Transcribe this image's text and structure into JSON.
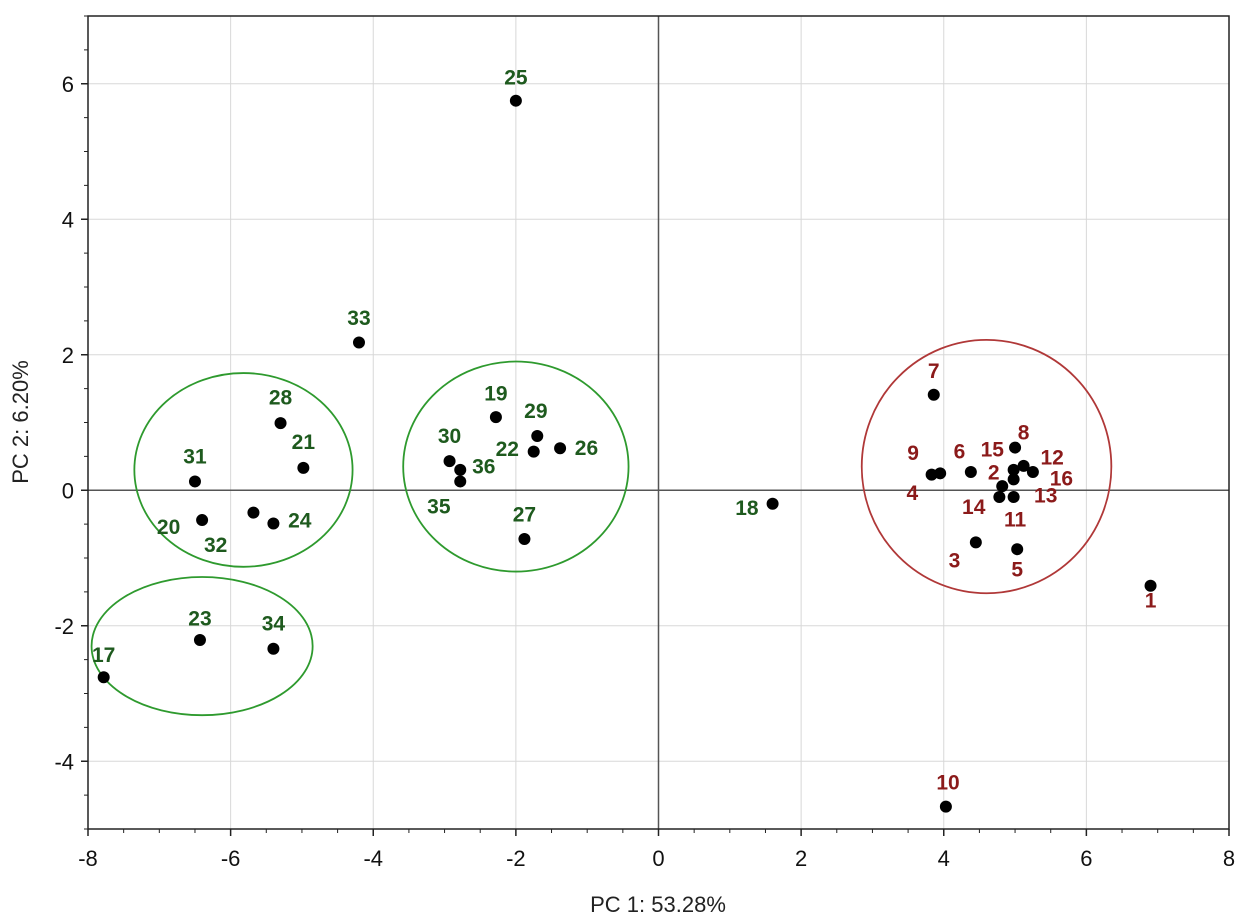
{
  "chart_data": {
    "type": "scatter",
    "title": "",
    "xlabel": "PC 1: 53.28%",
    "ylabel": "PC 2:  6.20%",
    "xlim": [
      -8,
      8
    ],
    "ylim": [
      -5,
      7
    ],
    "xticks": [
      -8,
      -6,
      -4,
      -2,
      0,
      2,
      4,
      6,
      8
    ],
    "yticks": [
      -4,
      -2,
      0,
      2,
      4,
      6
    ],
    "grid": true,
    "colors": {
      "green_group": "#1e5a1e",
      "red_group": "#8b1a1a",
      "green_ellipse": "#2e9a2e",
      "red_ellipse": "#b03838",
      "points": "#000000",
      "grid": "#d8d8d8",
      "zero_lines": "#555555"
    },
    "series": [
      {
        "name": "green",
        "points": [
          {
            "label": "17",
            "x": -7.78,
            "y": -2.76
          },
          {
            "label": "18",
            "x": 1.6,
            "y": -0.2
          },
          {
            "label": "19",
            "x": -2.28,
            "y": 1.08
          },
          {
            "label": "20",
            "x": -6.4,
            "y": -0.44
          },
          {
            "label": "21",
            "x": -4.98,
            "y": 0.33
          },
          {
            "label": "22",
            "x": -1.75,
            "y": 0.57
          },
          {
            "label": "23",
            "x": -6.43,
            "y": -2.21
          },
          {
            "label": "24",
            "x": -5.4,
            "y": -0.49
          },
          {
            "label": "25",
            "x": -2.0,
            "y": 5.75
          },
          {
            "label": "26",
            "x": -1.38,
            "y": 0.62
          },
          {
            "label": "27",
            "x": -1.88,
            "y": -0.72
          },
          {
            "label": "28",
            "x": -5.3,
            "y": 0.99
          },
          {
            "label": "29",
            "x": -1.7,
            "y": 0.8
          },
          {
            "label": "30",
            "x": -2.93,
            "y": 0.43
          },
          {
            "label": "31",
            "x": -6.5,
            "y": 0.13
          },
          {
            "label": "32",
            "x": -5.68,
            "y": -0.33
          },
          {
            "label": "33",
            "x": -4.2,
            "y": 2.18
          },
          {
            "label": "34",
            "x": -5.4,
            "y": -2.34
          },
          {
            "label": "35",
            "x": -2.78,
            "y": 0.13
          },
          {
            "label": "36",
            "x": -2.78,
            "y": 0.3
          }
        ]
      },
      {
        "name": "red",
        "points": [
          {
            "label": "1",
            "x": 6.9,
            "y": -1.41
          },
          {
            "label": "2",
            "x": 4.82,
            "y": 0.06
          },
          {
            "label": "3",
            "x": 4.45,
            "y": -0.77
          },
          {
            "label": "4",
            "x": 3.83,
            "y": 0.23
          },
          {
            "label": "5",
            "x": 5.03,
            "y": -0.87
          },
          {
            "label": "6",
            "x": 4.38,
            "y": 0.27
          },
          {
            "label": "7",
            "x": 3.86,
            "y": 1.41
          },
          {
            "label": "8",
            "x": 5.0,
            "y": 0.63
          },
          {
            "label": "9",
            "x": 3.95,
            "y": 0.25
          },
          {
            "label": "10",
            "x": 4.03,
            "y": -4.67
          },
          {
            "label": "11",
            "x": 4.98,
            "y": -0.1
          },
          {
            "label": "12",
            "x": 5.12,
            "y": 0.36
          },
          {
            "label": "13",
            "x": 4.98,
            "y": 0.16
          },
          {
            "label": "14",
            "x": 4.78,
            "y": -0.1
          },
          {
            "label": "15",
            "x": 4.98,
            "y": 0.3
          },
          {
            "label": "16",
            "x": 5.25,
            "y": 0.27
          }
        ]
      }
    ],
    "ellipses": [
      {
        "name": "green-cluster-left",
        "cx": -5.82,
        "cy": 0.3,
        "rx": 1.53,
        "ry": 1.43,
        "color": "green_ellipse"
      },
      {
        "name": "green-cluster-center",
        "cx": -2.0,
        "cy": 0.35,
        "rx": 1.58,
        "ry": 1.55,
        "color": "green_ellipse"
      },
      {
        "name": "green-cluster-bottom",
        "cx": -6.4,
        "cy": -2.3,
        "rx": 1.55,
        "ry": 1.02,
        "color": "green_ellipse"
      },
      {
        "name": "red-cluster",
        "cx": 4.6,
        "cy": 0.35,
        "rx": 1.75,
        "ry": 1.87,
        "color": "red_ellipse"
      }
    ],
    "annotations": [
      {
        "label": "1",
        "dx": 0,
        "dy": -0.22
      },
      {
        "label": "2",
        "dx": -0.12,
        "dy": 0.2
      },
      {
        "label": "3",
        "dx": -0.3,
        "dy": -0.27
      },
      {
        "label": "4",
        "dx": -0.27,
        "dy": -0.27
      },
      {
        "label": "5",
        "dx": 0,
        "dy": -0.3
      },
      {
        "label": "6",
        "dx": -0.16,
        "dy": 0.3
      },
      {
        "label": "7",
        "dx": 0,
        "dy": 0.35
      },
      {
        "label": "8",
        "dx": 0.12,
        "dy": 0.22
      },
      {
        "label": "9",
        "dx": -0.38,
        "dy": 0.3
      },
      {
        "label": "10",
        "dx": 0.03,
        "dy": 0.36
      },
      {
        "label": "11",
        "dx": 0.02,
        "dy": -0.33
      },
      {
        "label": "12",
        "dx": 0.4,
        "dy": 0.12
      },
      {
        "label": "13",
        "dx": 0.45,
        "dy": -0.24
      },
      {
        "label": "14",
        "dx": -0.36,
        "dy": -0.15
      },
      {
        "label": "15",
        "dx": -0.3,
        "dy": 0.3
      },
      {
        "label": "16",
        "dx": 0.4,
        "dy": -0.1
      },
      {
        "label": "17",
        "dx": 0,
        "dy": 0.33
      },
      {
        "label": "18",
        "dx": -0.36,
        "dy": -0.06
      },
      {
        "label": "19",
        "dx": 0,
        "dy": 0.35
      },
      {
        "label": "20",
        "dx": -0.47,
        "dy": -0.1
      },
      {
        "label": "21",
        "dx": 0,
        "dy": 0.38
      },
      {
        "label": "22",
        "dx": -0.37,
        "dy": 0.04
      },
      {
        "label": "23",
        "dx": 0,
        "dy": 0.32
      },
      {
        "label": "24",
        "dx": 0.37,
        "dy": 0.04
      },
      {
        "label": "25",
        "dx": 0,
        "dy": 0.34
      },
      {
        "label": "26",
        "dx": 0.37,
        "dy": 0
      },
      {
        "label": "27",
        "dx": 0,
        "dy": 0.36
      },
      {
        "label": "28",
        "dx": 0,
        "dy": 0.38
      },
      {
        "label": "29",
        "dx": -0.02,
        "dy": 0.37
      },
      {
        "label": "30",
        "dx": 0,
        "dy": 0.37
      },
      {
        "label": "31",
        "dx": 0,
        "dy": 0.37
      },
      {
        "label": "32",
        "dx": -0.53,
        "dy": -0.48
      },
      {
        "label": "33",
        "dx": 0,
        "dy": 0.36
      },
      {
        "label": "34",
        "dx": 0,
        "dy": 0.37
      },
      {
        "label": "35",
        "dx": -0.3,
        "dy": -0.37
      },
      {
        "label": "36",
        "dx": 0.33,
        "dy": 0.05
      }
    ]
  }
}
